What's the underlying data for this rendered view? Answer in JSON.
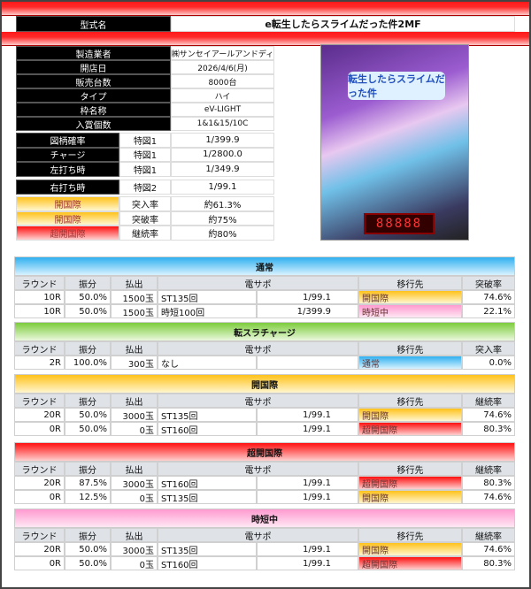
{
  "model": {
    "label": "型式名",
    "value": "e転生したらスライムだった件2MF"
  },
  "specs": [
    {
      "label": "製造業者",
      "value": "㈱サンセイアールアンドディ"
    },
    {
      "label": "開店日",
      "value": "2026/4/6(月)"
    },
    {
      "label": "販売台数",
      "value": "8000台"
    },
    {
      "label": "タイプ",
      "value": "ハイ"
    },
    {
      "label": "枠名称",
      "value": "eV-LIGHT"
    },
    {
      "label": "入賞個数",
      "value": "1&1&15/10C"
    }
  ],
  "probs": [
    {
      "label": "図柄確率",
      "sub": "特図1",
      "value": "1/399.9"
    },
    {
      "label": "チャージ",
      "sub": "特図1",
      "value": "1/2800.0"
    },
    {
      "label": "左打ち時",
      "sub": "特図1",
      "value": "1/349.9"
    },
    {
      "label": "右打ち時",
      "sub": "特図2",
      "value": "1/99.1"
    }
  ],
  "rates": [
    {
      "label": "開国際",
      "sub": "突入率",
      "value": "約61.3%",
      "color": "yellow"
    },
    {
      "label": "開国際",
      "sub": "突破率",
      "value": "約75%",
      "color": "yellow"
    },
    {
      "label": "超開国際",
      "sub": "継続率",
      "value": "約80%",
      "color": "red"
    }
  ],
  "machine_image": {
    "logo": "転生したらスライムだった件",
    "display": "88888"
  },
  "cols": {
    "round": "ラウンド",
    "split": "振分",
    "payout": "払出",
    "densapo": "電サポ",
    "dest": "移行先"
  },
  "sections": [
    {
      "title": "通常",
      "color": "blue",
      "rate_label": "突破率",
      "rows": [
        {
          "round": "10R",
          "split": "50.0%",
          "payout": "1500玉",
          "densapo": "ST135回",
          "prob": "1/99.1",
          "dest": "開国際",
          "dest_color": "yellow",
          "rate": "74.6%"
        },
        {
          "round": "10R",
          "split": "50.0%",
          "payout": "1500玉",
          "densapo": "時短100回",
          "prob": "1/399.9",
          "dest": "時短中",
          "dest_color": "pink",
          "rate": "22.1%"
        }
      ]
    },
    {
      "title": "転スラチャージ",
      "color": "green",
      "rate_label": "突入率",
      "rows": [
        {
          "round": "2R",
          "split": "100.0%",
          "payout": "300玉",
          "densapo": "なし",
          "prob": "",
          "dest": "通常",
          "dest_color": "blue",
          "rate": "0.0%"
        }
      ]
    },
    {
      "title": "開国際",
      "color": "yellow",
      "rate_label": "継続率",
      "rows": [
        {
          "round": "20R",
          "split": "50.0%",
          "payout": "3000玉",
          "densapo": "ST135回",
          "prob": "1/99.1",
          "dest": "開国際",
          "dest_color": "yellow",
          "rate": "74.6%"
        },
        {
          "round": "0R",
          "split": "50.0%",
          "payout": "0玉",
          "densapo": "ST160回",
          "prob": "1/99.1",
          "dest": "超開国際",
          "dest_color": "red",
          "rate": "80.3%"
        }
      ]
    },
    {
      "title": "超開国際",
      "color": "red",
      "rate_label": "継続率",
      "rows": [
        {
          "round": "20R",
          "split": "87.5%",
          "payout": "3000玉",
          "densapo": "ST160回",
          "prob": "1/99.1",
          "dest": "超開国際",
          "dest_color": "red",
          "rate": "80.3%"
        },
        {
          "round": "0R",
          "split": "12.5%",
          "payout": "0玉",
          "densapo": "ST135回",
          "prob": "1/99.1",
          "dest": "開国際",
          "dest_color": "yellow",
          "rate": "74.6%"
        }
      ]
    },
    {
      "title": "時短中",
      "color": "pink",
      "rate_label": "継続率",
      "rows": [
        {
          "round": "20R",
          "split": "50.0%",
          "payout": "3000玉",
          "densapo": "ST135回",
          "prob": "1/99.1",
          "dest": "開国際",
          "dest_color": "yellow",
          "rate": "74.6%"
        },
        {
          "round": "0R",
          "split": "50.0%",
          "payout": "0玉",
          "densapo": "ST160回",
          "prob": "1/99.1",
          "dest": "超開国際",
          "dest_color": "red",
          "rate": "80.3%"
        }
      ]
    }
  ]
}
